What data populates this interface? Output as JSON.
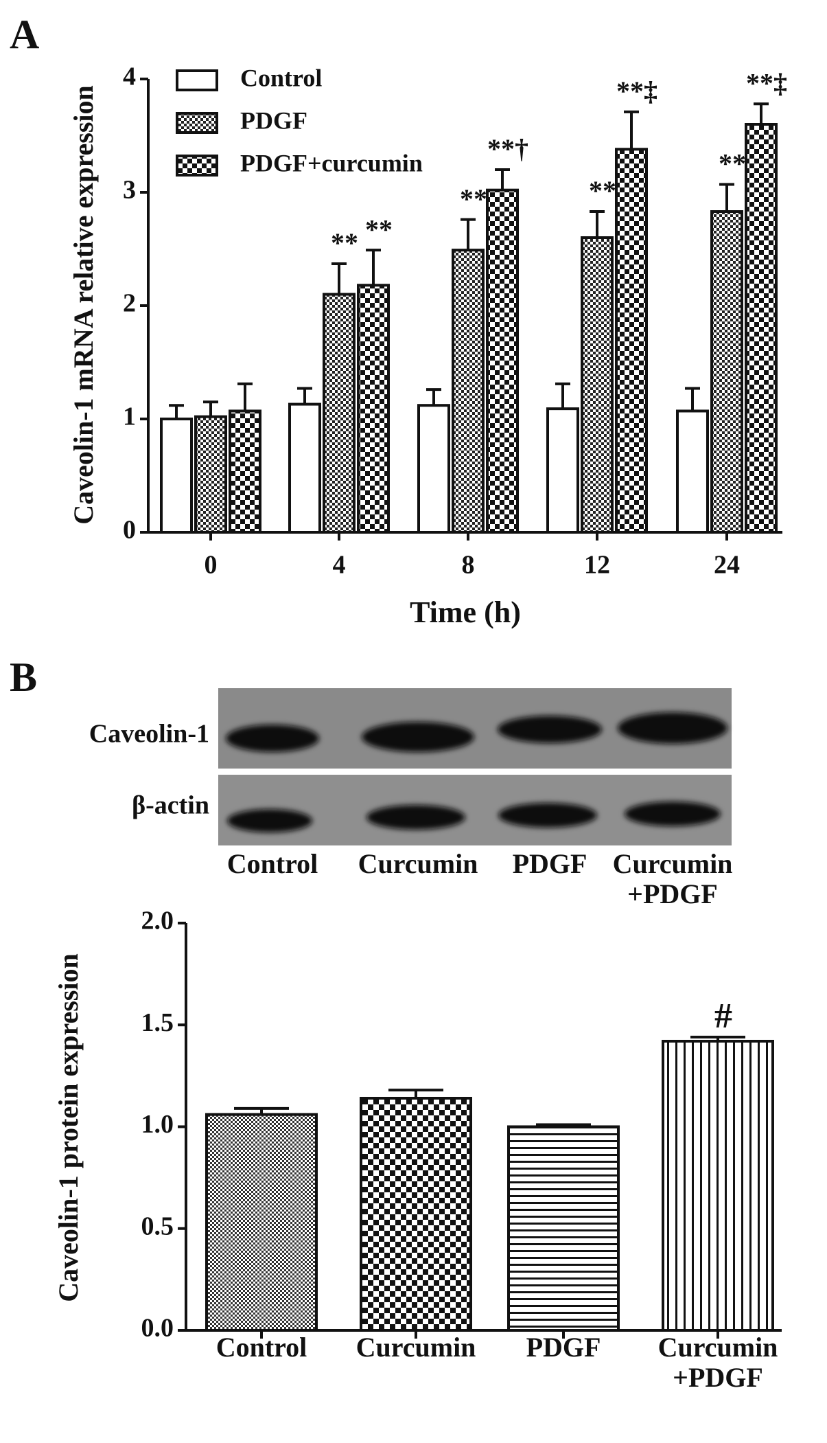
{
  "panels": {
    "a": "A",
    "b": "B"
  },
  "chart_data": [
    {
      "type": "bar",
      "ylabel": "Caveolin-1 mRNA relative expression",
      "xlabel": "Time (h)",
      "categories": [
        "0",
        "4",
        "8",
        "12",
        "24"
      ],
      "series": [
        {
          "name": "Control",
          "color": "#ffffff",
          "values": [
            1.0,
            1.13,
            1.12,
            1.09,
            1.07
          ],
          "errors": [
            0.12,
            0.14,
            0.14,
            0.22,
            0.2
          ],
          "annotations": [
            null,
            null,
            null,
            null,
            null
          ]
        },
        {
          "name": "PDGF",
          "color": "#ffffff",
          "values": [
            1.02,
            2.1,
            2.49,
            2.6,
            2.83
          ],
          "errors": [
            0.13,
            0.27,
            0.27,
            0.23,
            0.24
          ],
          "annotations": [
            null,
            "**",
            "**",
            "**",
            "**"
          ]
        },
        {
          "name": "PDGF+curcumin",
          "color": "#ffffff",
          "values": [
            1.07,
            2.18,
            3.02,
            3.38,
            3.6
          ],
          "errors": [
            0.24,
            0.31,
            0.18,
            0.33,
            0.18
          ],
          "annotations": [
            null,
            "**",
            "**†",
            "**‡",
            "**‡"
          ]
        }
      ],
      "ylim": [
        0,
        4
      ],
      "yticks": [
        0,
        1,
        2,
        3,
        4
      ],
      "legend": "upper left"
    },
    {
      "type": "bar",
      "ylabel": "Caveolin-1 protein expression",
      "categories": [
        "Control",
        "Curcumin",
        "PDGF",
        "Curcumin +PDGF"
      ],
      "values": [
        1.06,
        1.14,
        1.0,
        1.42
      ],
      "errors": [
        0.03,
        0.04,
        0.01,
        0.02
      ],
      "annotations": [
        null,
        null,
        null,
        "#"
      ],
      "color": "#ffffff",
      "ylim": [
        0,
        2
      ],
      "yticks": [
        {
          "value": 0,
          "label": "0.0"
        },
        {
          "value": 0.5,
          "label": "0.5"
        },
        {
          "value": 1,
          "label": "1.0"
        },
        {
          "value": 1.5,
          "label": "1.5"
        },
        {
          "value": 2,
          "label": "2.0"
        }
      ]
    }
  ],
  "blot": {
    "rows": [
      "Caveolin-1",
      "β-actin"
    ],
    "lanes": [
      "Control",
      "Curcumin",
      "PDGF",
      "Curcumin +PDGF"
    ]
  }
}
